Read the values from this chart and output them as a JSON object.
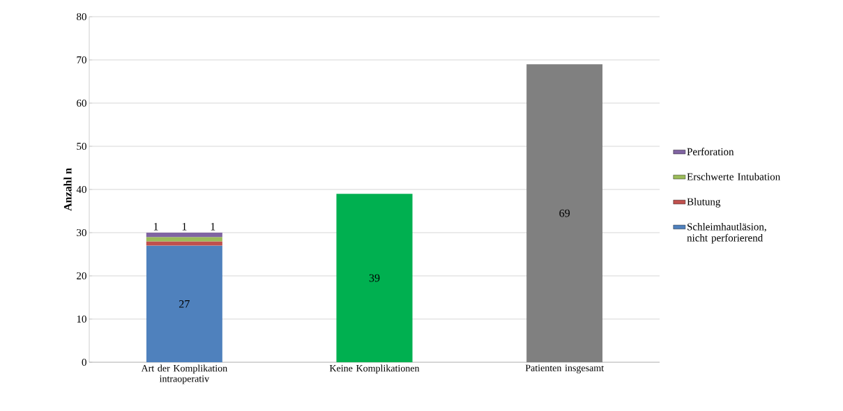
{
  "chart_data": {
    "type": "bar",
    "stacked": true,
    "ylabel": "Anzahl n",
    "categories": [
      "Art der Komplikation intraoperativ",
      "Keine Komplikationen",
      "Patienten insgesamt"
    ],
    "series": [
      {
        "name": "Schleimhautläsion, nicht perforierend",
        "color": "#4f81bd",
        "values": [
          27,
          null,
          null
        ]
      },
      {
        "name": "Blutung",
        "color": "#c0504d",
        "values": [
          1,
          null,
          null
        ]
      },
      {
        "name": "Erschwerte Intubation",
        "color": "#9bbb59",
        "values": [
          1,
          null,
          null
        ]
      },
      {
        "name": "Perforation",
        "color": "#8064a2",
        "values": [
          1,
          null,
          null
        ]
      },
      {
        "color": "#00b050",
        "values": [
          null,
          39,
          null
        ]
      },
      {
        "color": "#808080",
        "values": [
          null,
          null,
          69
        ]
      }
    ],
    "ylim": [
      0,
      80
    ],
    "yticks": [
      0,
      10,
      20,
      30,
      40,
      50,
      60,
      70,
      80
    ],
    "grid": "y",
    "legend": "right",
    "data_labels": true
  }
}
